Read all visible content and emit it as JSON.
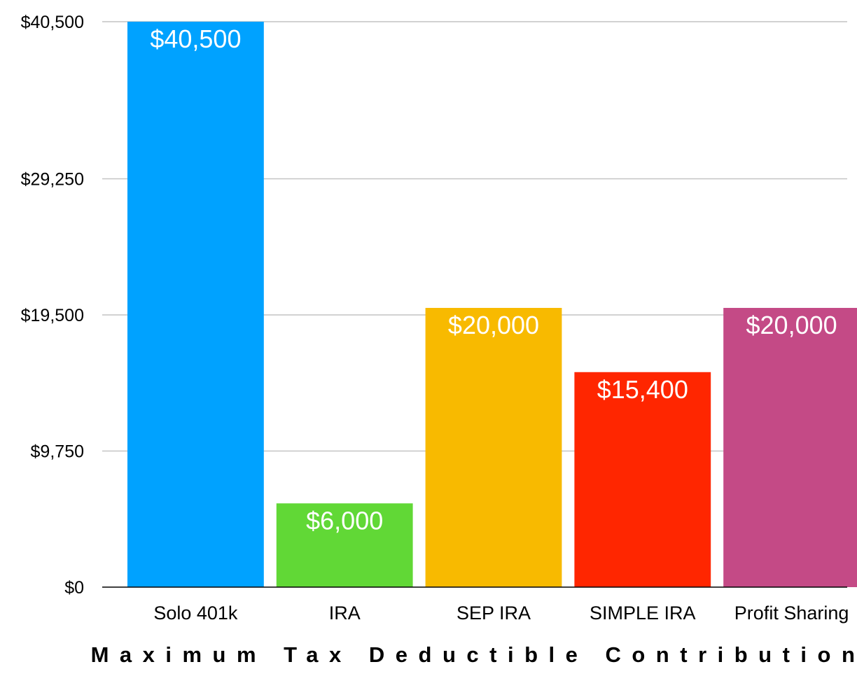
{
  "chart_data": {
    "type": "bar",
    "title": "",
    "xlabel": "Maximum Tax Deductible Contribution",
    "ylabel": "",
    "ylim": [
      0,
      40500
    ],
    "yticks": [
      0,
      9750,
      19500,
      29250,
      40500
    ],
    "ytick_labels": [
      "$0",
      "$9,750",
      "$19,500",
      "$29,250",
      "$40,500"
    ],
    "grid": true,
    "legend": "none",
    "categories": [
      "Solo 401k",
      "IRA",
      "SEP IRA",
      "SIMPLE IRA",
      "Profit Sharing"
    ],
    "values": [
      40500,
      6000,
      20000,
      15400,
      20000
    ],
    "value_labels": [
      "$40,500",
      "$6,000",
      "$20,000",
      "$15,400",
      "$20,000"
    ],
    "colors": [
      "#00a2ff",
      "#61d836",
      "#f8ba00",
      "#ff2600",
      "#c44a86"
    ]
  }
}
